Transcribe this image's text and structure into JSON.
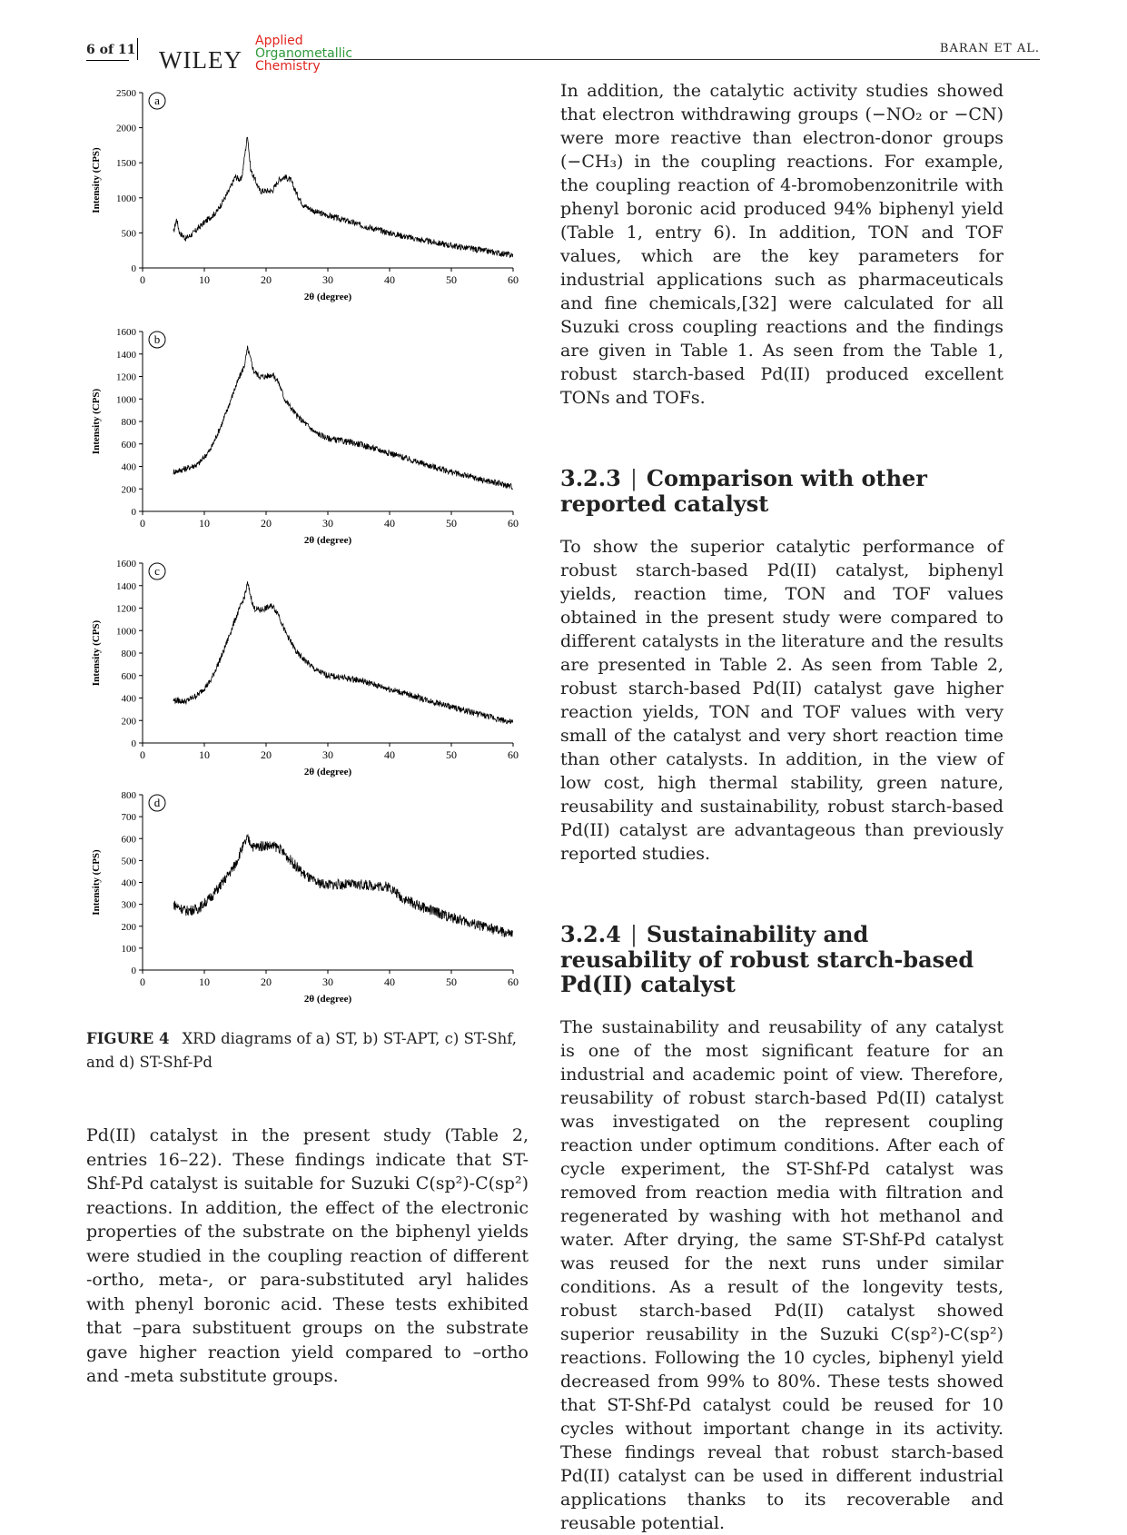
{
  "header": {
    "page_number": "6 of 11",
    "publisher": "WILEY",
    "journal_line1": "Applied",
    "journal_line2": "Organometallic",
    "journal_line3": "Chemistry",
    "authors": "BARAN ET AL."
  },
  "figure": {
    "caption_label": "FIGURE 4",
    "caption_text": "XRD diagrams of a) ST, b) ST-APT, c) ST-Shf, and d) ST-Shf-Pd"
  },
  "chart_data": [
    {
      "type": "line",
      "panel_label": "a",
      "title": "",
      "xlabel": "2θ (degree)",
      "ylabel": "Intensity (CPS)",
      "xlim": [
        0,
        60
      ],
      "ylim": [
        0,
        2500
      ],
      "xticks": [
        0,
        10,
        20,
        30,
        40,
        50,
        60
      ],
      "yticks": [
        0,
        500,
        1000,
        1500,
        2000,
        2500
      ],
      "show_xlabel": true,
      "series": [
        {
          "values": [
            [
              5,
              500
            ],
            [
              5.5,
              700
            ],
            [
              6,
              500
            ],
            [
              7,
              420
            ],
            [
              8,
              480
            ],
            [
              10,
              650
            ],
            [
              12,
              800
            ],
            [
              14,
              1100
            ],
            [
              15,
              1300
            ],
            [
              16,
              1250
            ],
            [
              17,
              1900
            ],
            [
              17.5,
              1400
            ],
            [
              18,
              1300
            ],
            [
              19,
              1100
            ],
            [
              20,
              1100
            ],
            [
              21,
              1100
            ],
            [
              22,
              1250
            ],
            [
              23,
              1300
            ],
            [
              24,
              1250
            ],
            [
              25,
              1050
            ],
            [
              26,
              900
            ],
            [
              28,
              800
            ],
            [
              30,
              750
            ],
            [
              35,
              620
            ],
            [
              40,
              500
            ],
            [
              45,
              400
            ],
            [
              50,
              320
            ],
            [
              55,
              250
            ],
            [
              60,
              180
            ]
          ]
        }
      ]
    },
    {
      "type": "line",
      "panel_label": "b",
      "title": "",
      "xlabel": "2θ (degree)",
      "ylabel": "Intensity (CPS)",
      "xlim": [
        0,
        60
      ],
      "ylim": [
        0,
        1600
      ],
      "xticks": [
        0,
        10,
        20,
        30,
        40,
        50,
        60
      ],
      "yticks": [
        0,
        200,
        400,
        600,
        800,
        1000,
        1200,
        1400,
        1600
      ],
      "show_xlabel": true,
      "series": [
        {
          "values": [
            [
              5,
              350
            ],
            [
              7,
              380
            ],
            [
              9,
              420
            ],
            [
              11,
              550
            ],
            [
              13,
              800
            ],
            [
              15,
              1100
            ],
            [
              16.5,
              1300
            ],
            [
              17,
              1450
            ],
            [
              18,
              1250
            ],
            [
              19,
              1200
            ],
            [
              20,
              1200
            ],
            [
              21,
              1220
            ],
            [
              22,
              1150
            ],
            [
              23,
              1000
            ],
            [
              25,
              850
            ],
            [
              28,
              700
            ],
            [
              30,
              650
            ],
            [
              35,
              600
            ],
            [
              40,
              520
            ],
            [
              45,
              430
            ],
            [
              50,
              350
            ],
            [
              55,
              280
            ],
            [
              60,
              220
            ]
          ]
        }
      ]
    },
    {
      "type": "line",
      "panel_label": "c",
      "title": "",
      "xlabel": "2θ (degree)",
      "ylabel": "Intensity (CPS)",
      "xlim": [
        0,
        60
      ],
      "ylim": [
        0,
        1600
      ],
      "xticks": [
        0,
        10,
        20,
        30,
        40,
        50,
        60
      ],
      "yticks": [
        0,
        200,
        400,
        600,
        800,
        1000,
        1200,
        1400,
        1600
      ],
      "show_xlabel": true,
      "series": [
        {
          "values": [
            [
              5,
              380
            ],
            [
              7,
              370
            ],
            [
              9,
              430
            ],
            [
              11,
              550
            ],
            [
              13,
              800
            ],
            [
              15,
              1100
            ],
            [
              16.5,
              1300
            ],
            [
              17,
              1420
            ],
            [
              18,
              1200
            ],
            [
              19,
              1180
            ],
            [
              20,
              1200
            ],
            [
              21,
              1220
            ],
            [
              22,
              1150
            ],
            [
              23,
              1000
            ],
            [
              25,
              800
            ],
            [
              28,
              650
            ],
            [
              30,
              600
            ],
            [
              35,
              560
            ],
            [
              40,
              480
            ],
            [
              45,
              400
            ],
            [
              50,
              320
            ],
            [
              55,
              250
            ],
            [
              60,
              180
            ]
          ]
        }
      ]
    },
    {
      "type": "line",
      "panel_label": "d",
      "title": "",
      "xlabel": "2θ (degree)",
      "ylabel": "Intensity (CPS)",
      "xlim": [
        0,
        60
      ],
      "ylim": [
        0,
        800
      ],
      "xticks": [
        0,
        10,
        20,
        30,
        40,
        50,
        60
      ],
      "yticks": [
        0,
        100,
        200,
        300,
        400,
        500,
        600,
        700,
        800
      ],
      "show_xlabel": true,
      "series": [
        {
          "values": [
            [
              5,
              300
            ],
            [
              7,
              270
            ],
            [
              9,
              280
            ],
            [
              11,
              330
            ],
            [
              13,
              400
            ],
            [
              15,
              480
            ],
            [
              16,
              550
            ],
            [
              17,
              600
            ],
            [
              18,
              560
            ],
            [
              20,
              570
            ],
            [
              22,
              560
            ],
            [
              24,
              500
            ],
            [
              26,
              440
            ],
            [
              28,
              400
            ],
            [
              30,
              390
            ],
            [
              35,
              390
            ],
            [
              40,
              380
            ],
            [
              42,
              330
            ],
            [
              45,
              290
            ],
            [
              50,
              240
            ],
            [
              55,
              200
            ],
            [
              60,
              160
            ]
          ]
        }
      ]
    }
  ],
  "left_column": {
    "paragraph": "Pd(II) catalyst in the present study (Table 2, entries 16–22). These findings indicate that ST-Shf-Pd catalyst is suitable for Suzuki C(sp²)-C(sp²) reactions. In addition, the effect of the electronic properties of the substrate on the biphenyl yields were studied in the coupling reaction of different -ortho, meta-, or para-substituted aryl halides with phenyl boronic acid. These tests exhibited that –para substituent groups on the substrate gave higher reaction yield compared to –ortho and -meta substitute groups."
  },
  "right_column": {
    "para1": "In addition, the catalytic activity studies showed that electron withdrawing groups (−NO₂ or −CN) were more reactive than electron-donor groups (−CH₃) in the coupling reactions. For example, the coupling reaction of 4-bromobenzonitrile with phenyl boronic acid produced 94% biphenyl yield (Table 1, entry 6). In addition, TON and TOF values, which are the key parameters for industrial applications such as pharmaceuticals and fine chemicals,[32] were calculated for all Suzuki cross coupling reactions and the findings are given in Table 1. As seen from the Table 1, robust starch-based Pd(II) produced excellent TONs and TOFs.",
    "heading2_number": "3.2.3",
    "heading2_title": "Comparison with other reported catalyst",
    "para2": "To show the superior catalytic performance of robust starch-based Pd(II) catalyst, biphenyl yields, reaction time, TON and TOF values obtained in the present study were compared to different catalysts in the literature and the results are presented in Table 2. As seen from Table 2, robust starch-based Pd(II) catalyst gave higher reaction yields, TON and TOF values with very small of the catalyst and very short reaction time than other catalysts. In addition, in the view of low cost, high thermal stability, green nature, reusability and sustainability, robust starch-based Pd(II) catalyst are advantageous than previously reported studies.",
    "heading3_number": "3.2.4",
    "heading3_title": "Sustainability and reusability of robust starch-based Pd(II) catalyst",
    "para3": "The sustainability and reusability of any catalyst is one of the most significant feature for an industrial and academic point of view. Therefore, reusability of robust starch-based Pd(II) catalyst was investigated on the represent coupling reaction under optimum conditions. After each of cycle experiment, the ST-Shf-Pd catalyst was removed from reaction media with filtration and regenerated by washing with hot methanol and water. After drying, the same ST-Shf-Pd catalyst was reused for the next runs under similar conditions. As a result of the longevity tests, robust starch-based Pd(II) catalyst showed superior reusability in the Suzuki C(sp²)-C(sp²) reactions. Following the 10 cycles, biphenyl yield decreased from 99% to 80%. These tests showed that ST-Shf-Pd catalyst could be reused for 10 cycles without important change in its activity. These findings reveal that robust starch-based Pd(II) catalyst can be used in different industrial applications thanks to its recoverable and reusable potential."
  }
}
